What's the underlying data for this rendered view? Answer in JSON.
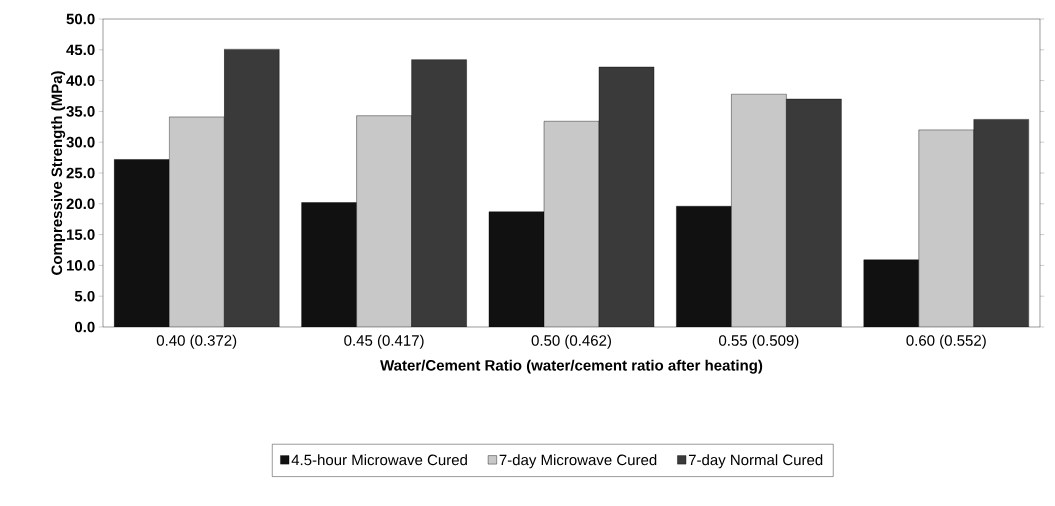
{
  "chart_data": {
    "type": "bar",
    "xlabel": "Water/Cement Ratio (water/cement ratio after heating)",
    "ylabel": "Compressive Strength (MPa)",
    "categories": [
      "0.40 (0.372)",
      "0.45 (0.417)",
      "0.50 (0.462)",
      "0.55 (0.509)",
      "0.60 (0.552)"
    ],
    "series": [
      {
        "name": "4.5-hour Microwave Cured",
        "color": "#111111",
        "values": [
          27.2,
          20.2,
          18.7,
          19.6,
          10.9
        ]
      },
      {
        "name": "7-day Microwave Cured",
        "color": "#c8c8c8",
        "values": [
          34.1,
          34.3,
          33.4,
          37.8,
          32.0
        ]
      },
      {
        "name": "7-day Normal Cured",
        "color": "#3a3a3a",
        "values": [
          45.1,
          43.4,
          42.2,
          37.0,
          33.7
        ]
      }
    ],
    "ylim": [
      0,
      50
    ],
    "yticks": [
      {
        "value": 0,
        "label": "0.0"
      },
      {
        "value": 5,
        "label": "5.0"
      },
      {
        "value": 10,
        "label": "10.0"
      },
      {
        "value": 15,
        "label": "15.0"
      },
      {
        "value": 20,
        "label": "20.0"
      },
      {
        "value": 25,
        "label": "25.0"
      },
      {
        "value": 30,
        "label": "30.0"
      },
      {
        "value": 35,
        "label": "35.0"
      },
      {
        "value": 40,
        "label": "40.0"
      },
      {
        "value": 45,
        "label": "45.0"
      },
      {
        "value": 50,
        "label": "50.0"
      }
    ],
    "legend": "bottom",
    "grid": false
  }
}
